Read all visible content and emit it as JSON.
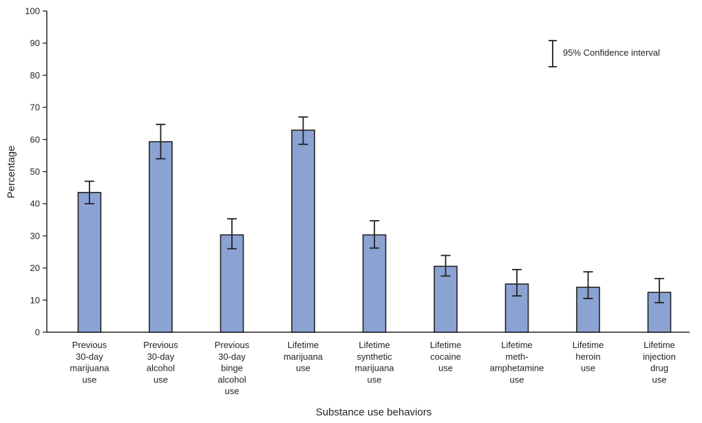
{
  "chart_data": {
    "type": "bar",
    "title": "",
    "xlabel": "Substance use behaviors",
    "ylabel": "Percentage",
    "ylim": [
      0,
      100
    ],
    "yticks": [
      0,
      10,
      20,
      30,
      40,
      50,
      60,
      70,
      80,
      90,
      100
    ],
    "grid": false,
    "categories": [
      [
        "Previous",
        "30-day",
        "marijuana",
        "use"
      ],
      [
        "Previous",
        "30-day",
        "alcohol",
        "use"
      ],
      [
        "Previous",
        "30-day",
        "binge",
        "alcohol",
        "use"
      ],
      [
        "Lifetime",
        "marijuana",
        "use"
      ],
      [
        "Lifetime",
        "synthetic",
        "marijuana",
        "use"
      ],
      [
        "Lifetime",
        "cocaine",
        "use"
      ],
      [
        "Lifetime",
        "meth-",
        "amphetamine",
        "use"
      ],
      [
        "Lifetime",
        "heroin",
        "use"
      ],
      [
        "Lifetime",
        "injection",
        "drug",
        "use"
      ]
    ],
    "values": [
      43.5,
      59.3,
      30.3,
      62.9,
      30.3,
      20.5,
      15.0,
      14.0,
      12.4
    ],
    "ci_lower": [
      40.0,
      54.0,
      26.0,
      58.5,
      26.2,
      17.5,
      11.3,
      10.5,
      9.2
    ],
    "ci_upper": [
      47.0,
      64.7,
      35.3,
      67.0,
      34.7,
      23.9,
      19.5,
      18.8,
      16.7
    ],
    "legend": {
      "label": "95% Confidence interval",
      "placement": "top-right"
    },
    "bar_color": "#8ba3d3",
    "bar_outline": "#231f20"
  }
}
